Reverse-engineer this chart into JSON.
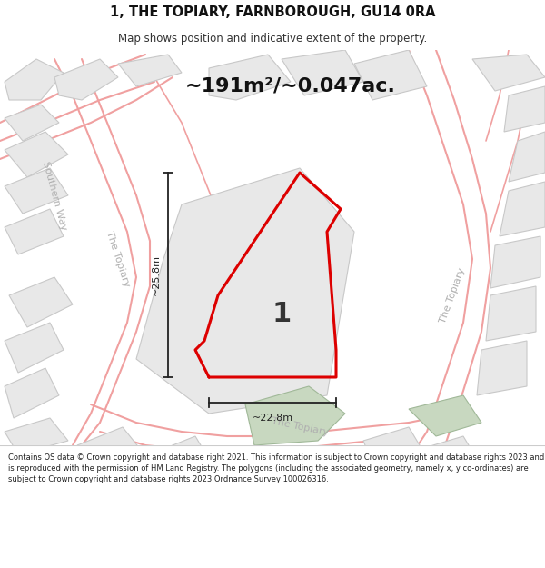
{
  "title": "1, THE TOPIARY, FARNBOROUGH, GU14 0RA",
  "subtitle": "Map shows position and indicative extent of the property.",
  "area_text": "~191m²/~0.047ac.",
  "dim_horizontal": "~22.8m",
  "dim_vertical": "~25.8m",
  "plot_label": "1",
  "footer": "Contains OS data © Crown copyright and database right 2021. This information is subject to Crown copyright and database rights 2023 and is reproduced with the permission of HM Land Registry. The polygons (including the associated geometry, namely x, y co-ordinates) are subject to Crown copyright and database rights 2023 Ordnance Survey 100026316.",
  "map_bg": "#f9f9f9",
  "plot_color": "#dd0000",
  "road_line_color": "#f0a0a0",
  "road_fill_color": "#f8d8d8",
  "building_fill": "#e8e8e8",
  "building_edge": "#c8c8c8",
  "green_fill": "#c8d8c0",
  "green_edge": "#a0b898",
  "label_color": "#b0b0b0",
  "dim_color": "#222222",
  "text_color": "#333333",
  "footer_color": "#222222"
}
